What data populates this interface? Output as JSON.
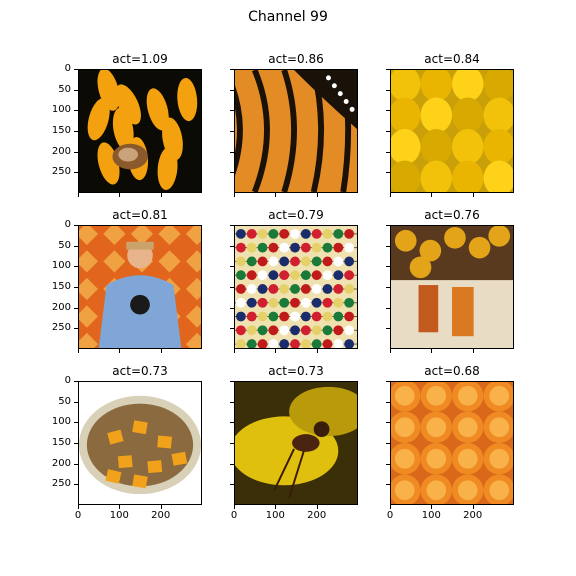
{
  "figure": {
    "title": "Channel 99"
  },
  "y_ticks": [
    "0",
    "50",
    "100",
    "150",
    "200",
    "250"
  ],
  "x_ticks": [
    "0",
    "100",
    "200"
  ],
  "panels": [
    {
      "title": "act=1.09",
      "icon": "orange-flowers-with-bug"
    },
    {
      "title": "act=0.86",
      "icon": "monarch-butterfly-wing"
    },
    {
      "title": "act=0.84",
      "icon": "yellow-bell-peppers"
    },
    {
      "title": "act=0.81",
      "icon": "person-mickey-sweater"
    },
    {
      "title": "act=0.79",
      "icon": "abacus-beads"
    },
    {
      "title": "act=0.76",
      "icon": "citrus-and-spice-boxes"
    },
    {
      "title": "act=0.73",
      "icon": "food-plate-squash-rice"
    },
    {
      "title": "act=0.73",
      "icon": "ant-on-yellow-flower"
    },
    {
      "title": "act=0.68",
      "icon": "orange-halves"
    }
  ]
}
